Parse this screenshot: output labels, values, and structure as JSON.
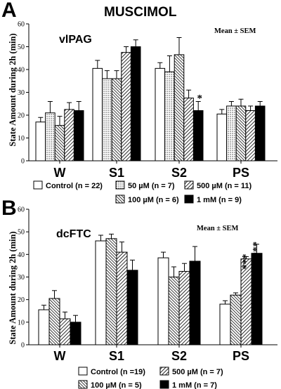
{
  "chart_data": [
    {
      "type": "bar",
      "panel": "A",
      "title": "MUSCIMOL",
      "region": "vlPAG",
      "stat_label": "Mean ± SEM",
      "ylabel": "State Amount during 2h (min)",
      "ylim": [
        0,
        60
      ],
      "yticks": [
        0,
        10,
        20,
        30,
        40,
        50,
        60
      ],
      "categories": [
        "W",
        "S1",
        "S2",
        "PS"
      ],
      "series": [
        {
          "name": "Control (n = 22)",
          "pattern": "white",
          "values": [
            17,
            40.5,
            40.5,
            20.5
          ],
          "errors": [
            2.0,
            3.5,
            2.5,
            2.0
          ]
        },
        {
          "name": "50 µM (n = 7)",
          "pattern": "dots",
          "values": [
            21,
            36,
            39,
            24
          ],
          "errors": [
            5.0,
            3.5,
            7.0,
            2.0
          ]
        },
        {
          "name": "100 µM (n = 6)",
          "pattern": "hatch-dense",
          "values": [
            15.5,
            36,
            46.5,
            24
          ],
          "errors": [
            4.0,
            3.5,
            7.5,
            3.0
          ]
        },
        {
          "name": "500 µM (n = 11)",
          "pattern": "hatch",
          "values": [
            22.5,
            47.5,
            27.5,
            22
          ],
          "errors": [
            3.0,
            2.5,
            3.5,
            2.0
          ]
        },
        {
          "name": "1 mM (n = 9)",
          "pattern": "black",
          "values": [
            22,
            50,
            22,
            24
          ],
          "errors": [
            4.0,
            3.0,
            4.0,
            2.0
          ]
        }
      ],
      "annotations": [
        {
          "category": "S2",
          "series": 4,
          "text": "*"
        }
      ],
      "legend": [
        {
          "row": 0,
          "col": 0,
          "series": 0
        },
        {
          "row": 0,
          "col": 1,
          "series": 1
        },
        {
          "row": 0,
          "col": 2,
          "series": 3
        },
        {
          "row": 1,
          "col": 1,
          "series": 2
        },
        {
          "row": 1,
          "col": 2,
          "series": 4
        }
      ]
    },
    {
      "type": "bar",
      "panel": "B",
      "region": "dcFTC",
      "stat_label": "Mean ± SEM",
      "ylabel": "State Amount during 2h (min)",
      "ylim": [
        0,
        60
      ],
      "yticks": [
        0,
        10,
        20,
        30,
        40,
        50,
        60
      ],
      "categories": [
        "W",
        "S1",
        "S2",
        "PS"
      ],
      "series": [
        {
          "name": "Control (n =19)",
          "pattern": "white",
          "values": [
            15.5,
            46,
            38.5,
            18
          ],
          "errors": [
            2.0,
            2.5,
            2.5,
            1.5
          ]
        },
        {
          "name": "100 µM (n = 5)",
          "pattern": "hatch-dense",
          "values": [
            20.5,
            47,
            30,
            22
          ],
          "errors": [
            3.5,
            2.0,
            4.5,
            1.0
          ]
        },
        {
          "name": "500 µM (n = 7)",
          "pattern": "hatch",
          "values": [
            11.5,
            41,
            32.5,
            38
          ],
          "errors": [
            3.0,
            4.5,
            3.5,
            1.0
          ]
        },
        {
          "name": "1 mM (n = 7)",
          "pattern": "black",
          "values": [
            10,
            33,
            37,
            40.5
          ],
          "errors": [
            3.0,
            4.5,
            6.5,
            4.0
          ]
        }
      ],
      "annotations": [
        {
          "category": "PS",
          "series": 2,
          "text": "***"
        },
        {
          "category": "PS",
          "series": 3,
          "text": "***"
        }
      ],
      "legend": [
        {
          "row": 0,
          "col": 0,
          "series": 0
        },
        {
          "row": 0,
          "col": 1,
          "series": 2
        },
        {
          "row": 1,
          "col": 0,
          "series": 1
        },
        {
          "row": 1,
          "col": 1,
          "series": 3
        }
      ]
    }
  ]
}
